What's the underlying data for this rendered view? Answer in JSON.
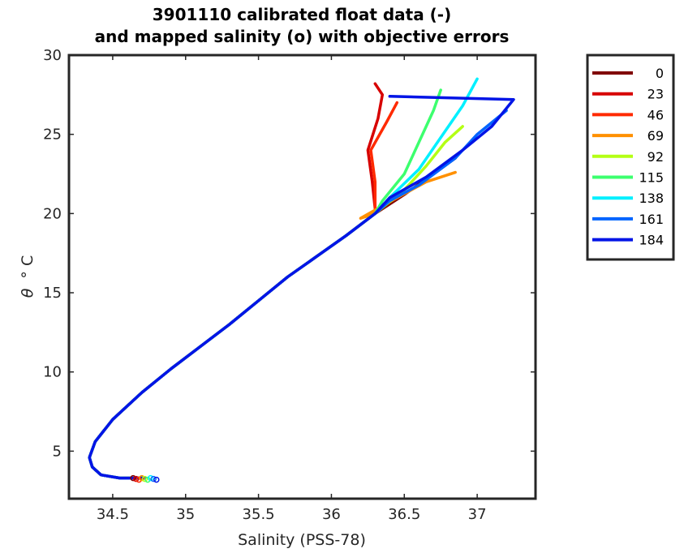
{
  "chart_data": {
    "type": "line",
    "title": [
      "3901110 calibrated float data (-)",
      "and mapped salinity (o) with objective errors"
    ],
    "xlabel": "Salinity (PSS-78)",
    "ylabel_symbol": "θ",
    "ylabel_unit": "° C",
    "xlim": [
      34.2,
      37.4
    ],
    "ylim": [
      2,
      30
    ],
    "xticks": [
      "34.5",
      "35",
      "35.5",
      "36",
      "36.5",
      "37"
    ],
    "yticks": [
      "5",
      "10",
      "15",
      "20",
      "25",
      "30"
    ],
    "grid": false,
    "legend_position": "outside-right",
    "legend": [
      {
        "label": "0",
        "color": "#800000"
      },
      {
        "label": "23",
        "color": "#d70000"
      },
      {
        "label": "46",
        "color": "#ff2a00"
      },
      {
        "label": "69",
        "color": "#ff9000"
      },
      {
        "label": "92",
        "color": "#b4ff14"
      },
      {
        "label": "115",
        "color": "#3cff6e"
      },
      {
        "label": "138",
        "color": "#00f0ff"
      },
      {
        "label": "161",
        "color": "#0064ff"
      },
      {
        "label": "184",
        "color": "#0014e6"
      }
    ],
    "common_profile": [
      [
        34.72,
        3.3
      ],
      [
        34.55,
        3.3
      ],
      [
        34.42,
        3.5
      ],
      [
        34.36,
        4.0
      ],
      [
        34.34,
        4.6
      ],
      [
        34.38,
        5.6
      ],
      [
        34.5,
        7.0
      ],
      [
        34.7,
        8.7
      ],
      [
        34.9,
        10.2
      ],
      [
        35.1,
        11.6
      ],
      [
        35.3,
        13.0
      ],
      [
        35.5,
        14.5
      ],
      [
        35.7,
        16.0
      ],
      [
        35.9,
        17.3
      ],
      [
        36.1,
        18.6
      ],
      [
        36.3,
        20.0
      ]
    ],
    "series": [
      {
        "name": "0",
        "color": "#800000",
        "upper": [
          [
            36.3,
            20.0
          ],
          [
            36.5,
            21.2
          ],
          [
            36.7,
            22.5
          ],
          [
            36.85,
            23.5
          ]
        ]
      },
      {
        "name": "23",
        "color": "#d70000",
        "upper": [
          [
            36.3,
            20.3
          ],
          [
            36.28,
            22.0
          ],
          [
            36.25,
            24.0
          ],
          [
            36.32,
            26.0
          ],
          [
            36.35,
            27.5
          ],
          [
            36.3,
            28.2
          ]
        ]
      },
      {
        "name": "46",
        "color": "#ff2a00",
        "upper": [
          [
            36.3,
            20.2
          ],
          [
            36.3,
            22.0
          ],
          [
            36.27,
            24.0
          ],
          [
            36.38,
            25.8
          ],
          [
            36.45,
            27.0
          ]
        ]
      },
      {
        "name": "69",
        "color": "#ff9000",
        "upper": [
          [
            36.2,
            19.7
          ],
          [
            36.45,
            21.0
          ],
          [
            36.65,
            22.0
          ],
          [
            36.85,
            22.6
          ]
        ]
      },
      {
        "name": "92",
        "color": "#b4ff14",
        "upper": [
          [
            36.3,
            20.0
          ],
          [
            36.5,
            21.5
          ],
          [
            36.65,
            23.0
          ],
          [
            36.78,
            24.5
          ],
          [
            36.9,
            25.5
          ]
        ]
      },
      {
        "name": "115",
        "color": "#3cff6e",
        "upper": [
          [
            36.35,
            20.8
          ],
          [
            36.5,
            22.5
          ],
          [
            36.6,
            24.5
          ],
          [
            36.7,
            26.5
          ],
          [
            36.75,
            27.8
          ]
        ]
      },
      {
        "name": "138",
        "color": "#00f0ff",
        "upper": [
          [
            36.4,
            21.0
          ],
          [
            36.6,
            22.8
          ],
          [
            36.75,
            24.8
          ],
          [
            36.9,
            26.8
          ],
          [
            37.0,
            28.5
          ]
        ]
      },
      {
        "name": "161",
        "color": "#0064ff",
        "upper": [
          [
            36.4,
            20.8
          ],
          [
            36.6,
            21.8
          ],
          [
            36.85,
            23.5
          ],
          [
            37.0,
            25.0
          ],
          [
            37.2,
            26.5
          ]
        ]
      },
      {
        "name": "184",
        "color": "#0014e6",
        "upper": [
          [
            36.4,
            21.0
          ],
          [
            36.65,
            22.3
          ],
          [
            36.9,
            24.0
          ],
          [
            37.1,
            25.5
          ],
          [
            37.25,
            27.2
          ],
          [
            36.4,
            27.4
          ]
        ]
      }
    ]
  }
}
